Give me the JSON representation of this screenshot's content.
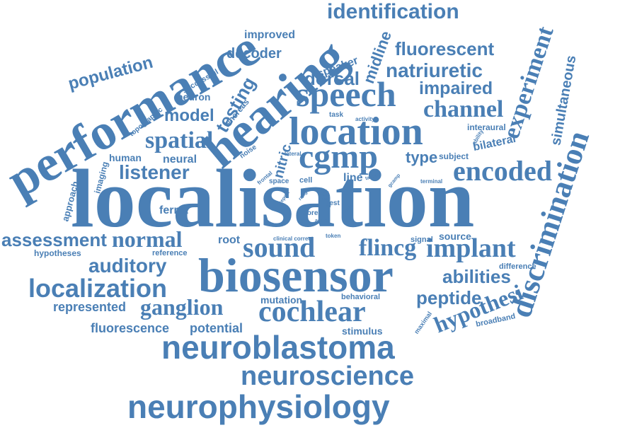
{
  "color": "#4a7fb5",
  "background": "#ffffff",
  "words": [
    "localisation",
    "performance",
    "hearing",
    "biosensor",
    "neuroblastoma",
    "neurophysiology",
    "neuroscience",
    "location",
    "speech",
    "sound",
    "cochlear",
    "discrimination",
    "encoded",
    "cgmp",
    "identification",
    "implant",
    "localization",
    "spatial",
    "experiment",
    "fluorescent",
    "natriuretic",
    "channel",
    "impaired",
    "flincg",
    "listener",
    "ganglion",
    "assessment",
    "normal",
    "auditory",
    "abilities",
    "peptide",
    "hypothesi",
    "population",
    "dorsal",
    "model",
    "testing",
    "decoder",
    "improved",
    "midline",
    "simultaneous",
    "potential",
    "fluorescence",
    "represented",
    "ferret",
    "speaker",
    "nitric",
    "type",
    "line",
    "mutation",
    "stimulus",
    "source",
    "root",
    "neuron",
    "whereas",
    "successful",
    "neural",
    "human",
    "imaging",
    "approach",
    "hypotheses",
    "reference",
    "difference",
    "broadband",
    "behavioral",
    "signal",
    "maximal",
    "bilateral",
    "interaural",
    "subject",
    "topographic",
    "task",
    "activity",
    "noise",
    "frontal",
    "lateral",
    "space",
    "cell",
    "ability",
    "terminal",
    "gcamp",
    "target",
    "user",
    "test",
    "tail",
    "more",
    "adult",
    "range",
    "report",
    "basal",
    "token",
    "rate",
    "clinical correct",
    "cue",
    "left"
  ]
}
